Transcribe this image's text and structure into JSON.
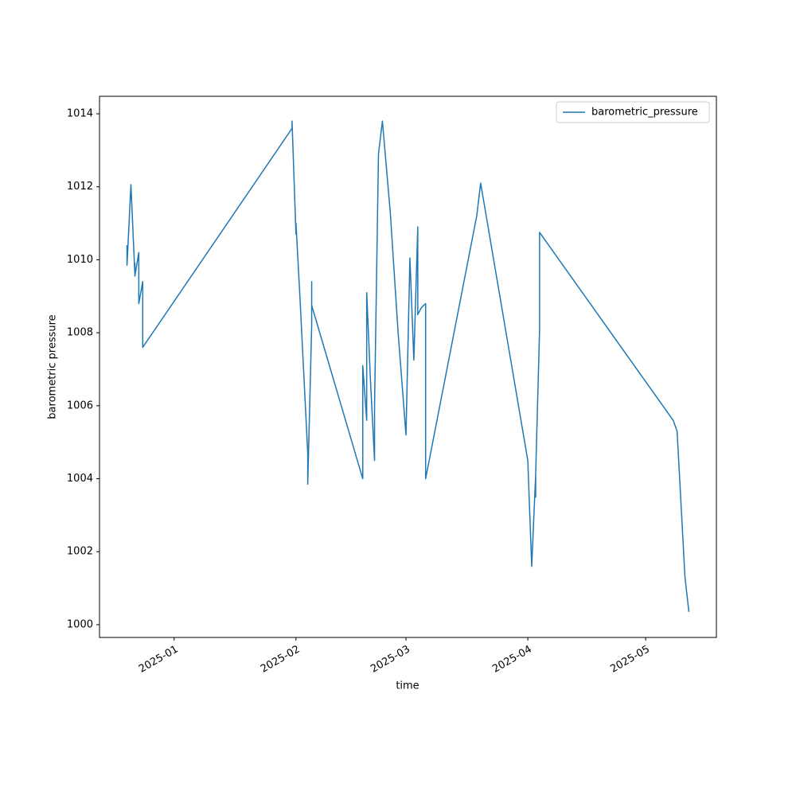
{
  "chart_data": {
    "type": "line",
    "xlabel": "time",
    "ylabel": "barometric pressure",
    "x": [
      "2024-12-20",
      "2024-12-20",
      "2024-12-21",
      "2024-12-22",
      "2024-12-22",
      "2024-12-22",
      "2024-12-23",
      "2024-12-23",
      "2024-12-24",
      "2024-12-24",
      "2024-12-24",
      "2024-12-24",
      "2025-01-31",
      "2025-01-31",
      "2025-02-01",
      "2025-02-01",
      "2025-02-02",
      "2025-02-02",
      "2025-02-04",
      "2025-02-04",
      "2025-02-04",
      "2025-02-05",
      "2025-02-05",
      "2025-02-05",
      "2025-02-18",
      "2025-02-18",
      "2025-02-18",
      "2025-02-18",
      "2025-02-19",
      "2025-02-19",
      "2025-02-19",
      "2025-02-20",
      "2025-02-21",
      "2025-02-21",
      "2025-02-21",
      "2025-02-22",
      "2025-02-23",
      "2025-02-25",
      "2025-02-27",
      "2025-03-01",
      "2025-03-02",
      "2025-03-03",
      "2025-03-04",
      "2025-03-04",
      "2025-03-05",
      "2025-03-06",
      "2025-03-06",
      "2025-03-19",
      "2025-03-20",
      "2025-04-01",
      "2025-04-02",
      "2025-04-03",
      "2025-04-03",
      "2025-04-03",
      "2025-04-04",
      "2025-04-04",
      "2025-04-04",
      "2025-05-08",
      "2025-05-09",
      "2025-05-11",
      "2025-05-12"
    ],
    "series": [
      {
        "name": "barometric_pressure",
        "color": "#1f77b4",
        "values": [
          1010.4,
          1009.85,
          1012.06,
          1009.6,
          1009.9,
          1009.55,
          1010.2,
          1008.8,
          1009.4,
          1008.0,
          1008.2,
          1007.6,
          1013.6,
          1013.8,
          1010.7,
          1011.0,
          1009.0,
          1009.0,
          1004.7,
          1003.9,
          1003.85,
          1008.2,
          1009.4,
          1008.75,
          1004.0,
          1006.0,
          1005.1,
          1007.1,
          1005.6,
          1007.1,
          1009.1,
          1006.6,
          1004.5,
          1006.1,
          1006.0,
          1012.9,
          1013.8,
          1011.3,
          1008.0,
          1005.2,
          1010.05,
          1007.25,
          1010.9,
          1008.5,
          1008.7,
          1008.8,
          1004.0,
          1011.2,
          1012.1,
          1004.5,
          1001.6,
          1004.1,
          1003.5,
          1004.1,
          1008.1,
          1008.45,
          1010.75,
          1005.6,
          1005.3,
          1001.3,
          1000.35
        ]
      }
    ],
    "xlim": [
      "2024-12-13",
      "2025-05-19"
    ],
    "xticks": [
      {
        "value": "2025-01-01",
        "label": "2025-01"
      },
      {
        "value": "2025-02-01",
        "label": "2025-02"
      },
      {
        "value": "2025-03-01",
        "label": "2025-03"
      },
      {
        "value": "2025-04-01",
        "label": "2025-04"
      },
      {
        "value": "2025-05-01",
        "label": "2025-05"
      }
    ],
    "ylim": [
      999.65,
      1014.48
    ],
    "yticks": [
      1000,
      1002,
      1004,
      1006,
      1008,
      1010,
      1012,
      1014
    ],
    "legend": "upper right",
    "grid": false
  }
}
